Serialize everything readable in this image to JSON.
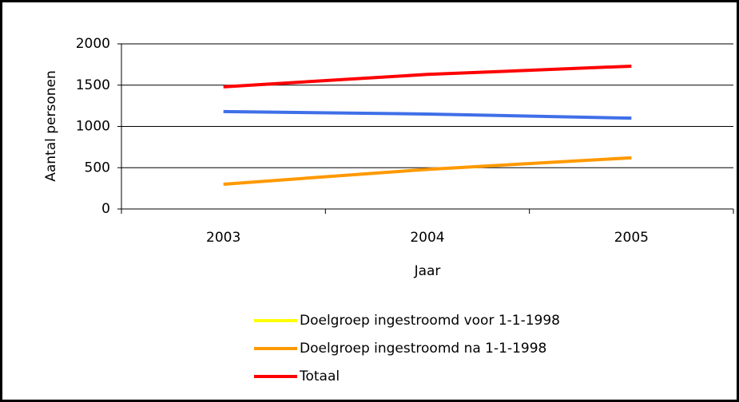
{
  "chart_data": {
    "type": "line",
    "x_label": "Jaar",
    "y_label": "Aantal personen",
    "categories": [
      "2003",
      "2004",
      "2005"
    ],
    "series": [
      {
        "name": "Doelgroep ingestroomd voor 1-1-1998",
        "color": "#3f6fe8",
        "legend_color": "#ffff00",
        "values": [
          1180,
          1150,
          1100
        ]
      },
      {
        "name": "Doelgroep ingestroomd na 1-1-1998",
        "color": "#ff9900",
        "values": [
          300,
          480,
          620
        ]
      },
      {
        "name": "Totaal",
        "color": "#ff0000",
        "values": [
          1480,
          1630,
          1730
        ]
      }
    ],
    "ylim": [
      0,
      2000
    ],
    "yticks": [
      0,
      500,
      1000,
      1500,
      2000
    ],
    "grid": true,
    "legend": "bottom"
  }
}
